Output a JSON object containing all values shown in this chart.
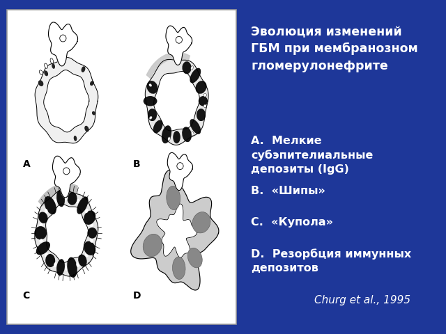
{
  "background_color": "#1e3799",
  "panel_bg": "#ffffff",
  "title_text": "Эволюция изменений\nГБМ при мембранозном\nгломерулонефрите",
  "title_color": "#ffffff",
  "title_fontsize": 12.5,
  "items": [
    {
      "label": "A.",
      "text": "  Мелкие\nсубэпителиальные\nдепозиты (IgG)"
    },
    {
      "label": "B.",
      "text": "  «Шипы»"
    },
    {
      "label": "C.",
      "text": "  «Купола»"
    },
    {
      "label": "D.",
      "text": "  Резорбция иммунных\nдепозитов"
    }
  ],
  "item_color": "#ffffff",
  "item_fontsize": 11.5,
  "citation": "Churg et al., 1995",
  "citation_color": "#ffffff",
  "citation_fontsize": 11,
  "diagram_labels": [
    "A",
    "B",
    "C",
    "D"
  ],
  "label_color": "#000000",
  "label_fontsize": 10
}
